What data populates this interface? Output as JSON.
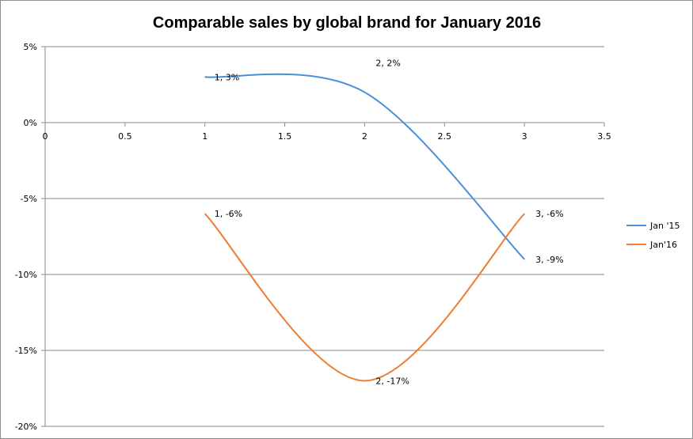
{
  "chart_data": {
    "type": "line",
    "title": "Comparable sales by global brand for January 2016",
    "xlabel": "",
    "ylabel": "",
    "xlim": [
      0,
      3.5
    ],
    "ylim": [
      -20,
      5
    ],
    "x_ticks": [
      "0",
      "0.5",
      "1",
      "1.5",
      "2",
      "2.5",
      "3",
      "3.5"
    ],
    "y_ticks": [
      "5%",
      "0%",
      "-5%",
      "-10%",
      "-15%",
      "-20%"
    ],
    "y_tick_values": [
      5,
      0,
      -5,
      -10,
      -15,
      -20
    ],
    "x_tick_values": [
      0,
      0.5,
      1,
      1.5,
      2,
      2.5,
      3,
      3.5
    ],
    "grid": true,
    "legend_position": "right",
    "series": [
      {
        "name": "Jan '15",
        "color": "#4a90d9",
        "x": [
          1,
          2,
          3
        ],
        "values": [
          3,
          2,
          -9
        ],
        "labels": [
          "1, 3%",
          "2, 2%",
          "3, -9%"
        ]
      },
      {
        "name": "Jan'16",
        "color": "#ed7d31",
        "x": [
          1,
          2,
          3
        ],
        "values": [
          -6,
          -17,
          -6
        ],
        "labels": [
          "1, -6%",
          "2, -17%",
          "3, -6%"
        ]
      }
    ]
  }
}
